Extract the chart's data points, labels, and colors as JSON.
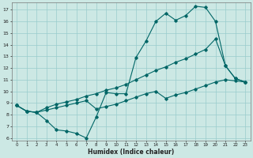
{
  "xlabel": "Humidex (Indice chaleur)",
  "bg_color": "#cce8e4",
  "grid_color": "#99cccc",
  "line_color": "#006666",
  "xlim": [
    -0.5,
    23.5
  ],
  "ylim": [
    5.8,
    17.6
  ],
  "xticks": [
    0,
    1,
    2,
    3,
    4,
    5,
    6,
    7,
    8,
    9,
    10,
    11,
    12,
    13,
    14,
    15,
    16,
    17,
    18,
    19,
    20,
    21,
    22,
    23
  ],
  "yticks": [
    6,
    7,
    8,
    9,
    10,
    11,
    12,
    13,
    14,
    15,
    16,
    17
  ],
  "line1_x": [
    0,
    1,
    2,
    3,
    4,
    5,
    6,
    7,
    8,
    9,
    10,
    11,
    12,
    13,
    14,
    15,
    16,
    17,
    18,
    19,
    20,
    21,
    22,
    23
  ],
  "line1_y": [
    8.8,
    8.3,
    8.2,
    7.5,
    6.7,
    6.6,
    6.4,
    6.0,
    7.8,
    9.9,
    9.8,
    9.8,
    12.9,
    14.3,
    16.0,
    16.7,
    16.1,
    16.5,
    17.3,
    17.2,
    16.0,
    12.2,
    11.1,
    10.8
  ],
  "line2_x": [
    0,
    1,
    2,
    3,
    4,
    5,
    6,
    7,
    8,
    9,
    10,
    11,
    12,
    13,
    14,
    15,
    16,
    17,
    18,
    19,
    20,
    21,
    22,
    23
  ],
  "line2_y": [
    8.8,
    8.3,
    8.2,
    8.6,
    8.9,
    9.1,
    9.3,
    9.6,
    9.8,
    10.1,
    10.3,
    10.6,
    11.0,
    11.4,
    11.8,
    12.1,
    12.5,
    12.8,
    13.2,
    13.6,
    14.5,
    12.2,
    11.1,
    10.8
  ],
  "line3_x": [
    0,
    1,
    2,
    3,
    4,
    5,
    6,
    7,
    8,
    9,
    10,
    11,
    12,
    13,
    14,
    15,
    16,
    17,
    18,
    19,
    20,
    21,
    22,
    23
  ],
  "line3_y": [
    8.8,
    8.3,
    8.2,
    8.4,
    8.6,
    8.8,
    9.0,
    9.2,
    8.5,
    8.7,
    8.9,
    9.2,
    9.5,
    9.8,
    10.0,
    9.4,
    9.7,
    9.9,
    10.2,
    10.5,
    10.8,
    11.0,
    10.9,
    10.8
  ]
}
